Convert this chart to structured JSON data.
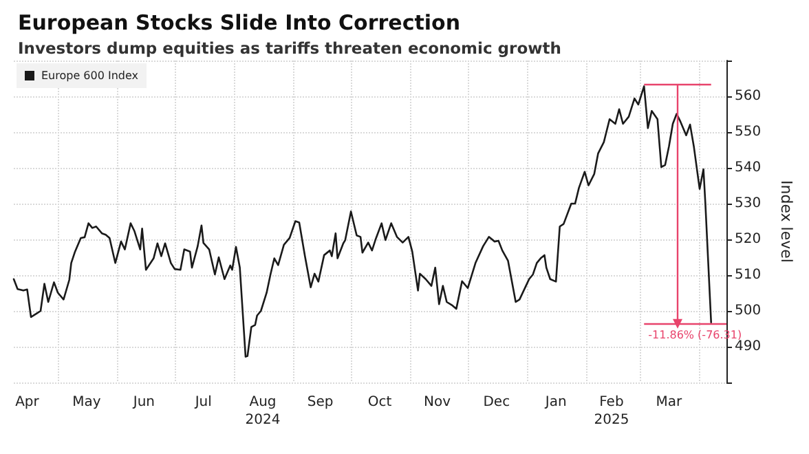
{
  "chart_data": {
    "type": "line",
    "title": "European Stocks Slide Into Correction",
    "subtitle": "Investors dump equities as tariffs threaten economic growth",
    "ylabel": "Index level",
    "x": [
      "2024-04-08",
      "2024-04-10",
      "2024-04-13",
      "2024-04-15",
      "2024-04-17",
      "2024-04-20",
      "2024-04-22",
      "2024-04-24",
      "2024-04-26",
      "2024-04-29",
      "2024-05-01",
      "2024-05-04",
      "2024-05-07",
      "2024-05-08",
      "2024-05-10",
      "2024-05-13",
      "2024-05-15",
      "2024-05-17",
      "2024-05-19",
      "2024-05-21",
      "2024-05-24",
      "2024-05-26",
      "2024-05-28",
      "2024-05-31",
      "2024-06-03",
      "2024-06-05",
      "2024-06-08",
      "2024-06-10",
      "2024-06-13",
      "2024-06-14",
      "2024-06-16",
      "2024-06-20",
      "2024-06-22",
      "2024-06-24",
      "2024-06-26",
      "2024-06-29",
      "2024-07-01",
      "2024-07-04",
      "2024-07-06",
      "2024-07-09",
      "2024-07-10",
      "2024-07-13",
      "2024-07-15",
      "2024-07-16",
      "2024-07-19",
      "2024-07-22",
      "2024-07-24",
      "2024-07-27",
      "2024-07-30",
      "2024-07-31",
      "2024-08-02",
      "2024-08-04",
      "2024-08-07",
      "2024-08-08",
      "2024-08-10",
      "2024-08-12",
      "2024-08-13",
      "2024-08-15",
      "2024-08-18",
      "2024-08-20",
      "2024-08-22",
      "2024-08-24",
      "2024-08-27",
      "2024-08-30",
      "2024-09-02",
      "2024-09-04",
      "2024-09-07",
      "2024-09-10",
      "2024-09-12",
      "2024-09-14",
      "2024-09-17",
      "2024-09-20",
      "2024-09-21",
      "2024-09-23",
      "2024-09-24",
      "2024-09-27",
      "2024-09-28",
      "2024-10-01",
      "2024-10-04",
      "2024-10-06",
      "2024-10-07",
      "2024-10-10",
      "2024-10-12",
      "2024-10-14",
      "2024-10-17",
      "2024-10-19",
      "2024-10-22",
      "2024-10-25",
      "2024-10-28",
      "2024-10-31",
      "2024-11-02",
      "2024-11-05",
      "2024-11-06",
      "2024-11-09",
      "2024-11-12",
      "2024-11-14",
      "2024-11-16",
      "2024-11-18",
      "2024-11-20",
      "2024-11-23",
      "2024-11-25",
      "2024-11-28",
      "2024-12-01",
      "2024-12-05",
      "2024-12-09",
      "2024-12-12",
      "2024-12-15",
      "2024-12-17",
      "2024-12-19",
      "2024-12-22",
      "2024-12-26",
      "2024-12-28",
      "2024-12-31",
      "2025-01-02",
      "2025-01-04",
      "2025-01-06",
      "2025-01-08",
      "2025-01-10",
      "2025-01-11",
      "2025-01-13",
      "2025-01-16",
      "2025-01-18",
      "2025-01-20",
      "2025-01-24",
      "2025-01-26",
      "2025-01-28",
      "2025-01-31",
      "2025-02-02",
      "2025-02-05",
      "2025-02-07",
      "2025-02-10",
      "2025-02-13",
      "2025-02-16",
      "2025-02-18",
      "2025-02-20",
      "2025-02-23",
      "2025-02-26",
      "2025-02-28",
      "2025-03-03",
      "2025-03-05",
      "2025-03-07",
      "2025-03-10",
      "2025-03-12",
      "2025-03-14",
      "2025-03-16",
      "2025-03-18",
      "2025-03-20",
      "2025-03-22",
      "2025-03-25",
      "2025-03-27",
      "2025-03-29",
      "2025-04-01",
      "2025-04-03",
      "2025-04-04",
      "2025-04-07"
    ],
    "series": [
      {
        "name": "Europe 600 Index",
        "color": "#1a1a1a",
        "values": [
          508.9,
          506.1,
          505.7,
          506.0,
          498.3,
          499.3,
          500.0,
          507.6,
          502.5,
          508.0,
          505.1,
          503.2,
          508.7,
          513.4,
          516.6,
          520.4,
          520.6,
          524.5,
          523.2,
          523.6,
          521.7,
          521.3,
          520.4,
          513.4,
          519.4,
          517.2,
          524.5,
          522.3,
          517.2,
          523.0,
          511.5,
          514.7,
          518.9,
          515.3,
          518.9,
          513.4,
          511.7,
          511.5,
          517.2,
          516.6,
          512.1,
          518.1,
          523.9,
          519.0,
          517.2,
          510.2,
          515.0,
          508.9,
          512.7,
          511.5,
          517.9,
          512.1,
          487.2,
          487.4,
          495.5,
          496.1,
          498.7,
          500.0,
          505.1,
          510.2,
          514.7,
          512.8,
          518.5,
          520.4,
          525.1,
          524.7,
          515.3,
          506.6,
          510.4,
          508.2,
          515.6,
          516.9,
          515.3,
          521.7,
          514.7,
          518.9,
          519.8,
          527.8,
          521.1,
          520.7,
          516.3,
          519.1,
          516.9,
          520.2,
          524.5,
          519.8,
          524.5,
          520.7,
          519.1,
          520.7,
          516.6,
          505.7,
          510.4,
          508.9,
          507.0,
          512.1,
          501.9,
          507.0,
          502.5,
          501.5,
          500.6,
          508.3,
          506.4,
          513.4,
          518.1,
          520.7,
          519.4,
          519.6,
          516.9,
          514.0,
          502.5,
          503.2,
          506.6,
          508.9,
          510.2,
          513.4,
          514.7,
          515.6,
          512.1,
          508.9,
          508.2,
          523.6,
          524.3,
          530.0,
          530.0,
          534.4,
          538.9,
          535.1,
          538.3,
          544.0,
          547.2,
          553.6,
          552.3,
          556.4,
          552.3,
          554.3,
          559.4,
          557.7,
          562.8,
          551.1,
          555.9,
          553.6,
          540.2,
          540.8,
          546.0,
          552.3,
          555.1,
          552.9,
          549.1,
          552.1,
          545.9,
          534.1,
          539.6,
          530.0,
          496.8
        ]
      }
    ],
    "xlim": [
      "2024-04-08",
      "2025-04-15"
    ],
    "xticks": [
      {
        "value": "2024-04-15",
        "label": "Apr"
      },
      {
        "value": "2024-05-01",
        "label": null
      },
      {
        "value": "2024-05-16",
        "label": "May"
      },
      {
        "value": "2024-06-01",
        "label": null
      },
      {
        "value": "2024-06-15",
        "label": "Jun"
      },
      {
        "value": "2024-07-01",
        "label": null
      },
      {
        "value": "2024-07-16",
        "label": "Jul"
      },
      {
        "value": "2024-08-01",
        "label": null
      },
      {
        "value": "2024-08-16",
        "label": "Aug\n2024"
      },
      {
        "value": "2024-09-01",
        "label": null
      },
      {
        "value": "2024-09-15",
        "label": "Sep"
      },
      {
        "value": "2024-10-01",
        "label": null
      },
      {
        "value": "2024-10-16",
        "label": "Oct"
      },
      {
        "value": "2024-11-01",
        "label": null
      },
      {
        "value": "2024-11-15",
        "label": "Nov"
      },
      {
        "value": "2024-12-01",
        "label": null
      },
      {
        "value": "2024-12-16",
        "label": "Dec"
      },
      {
        "value": "2025-01-01",
        "label": null
      },
      {
        "value": "2025-01-16",
        "label": "Jan"
      },
      {
        "value": "2025-02-01",
        "label": null
      },
      {
        "value": "2025-02-14",
        "label": "Feb\n2025"
      },
      {
        "value": "2025-03-01",
        "label": null
      },
      {
        "value": "2025-03-16",
        "label": "Mar"
      },
      {
        "value": "2025-04-01",
        "label": null
      }
    ],
    "ylim": [
      480,
      570
    ],
    "yticks": [
      {
        "value": 480,
        "label": null
      },
      490,
      500,
      510,
      520,
      530,
      540,
      550,
      560,
      {
        "value": 570,
        "label": null
      }
    ],
    "ref_lines": [
      {
        "axis": "y",
        "value": 563.2,
        "label": null,
        "color": "#e8436b"
      },
      {
        "axis": "y",
        "value": 496.4,
        "label": null,
        "color": "#e8436b"
      }
    ],
    "annotations": [
      {
        "text": "-11.86% (-76.31)",
        "x": "2025-03-03",
        "y": 496.4
      }
    ],
    "grid": true,
    "legend": "top left",
    "marker": "none",
    "line_style": "solid"
  }
}
